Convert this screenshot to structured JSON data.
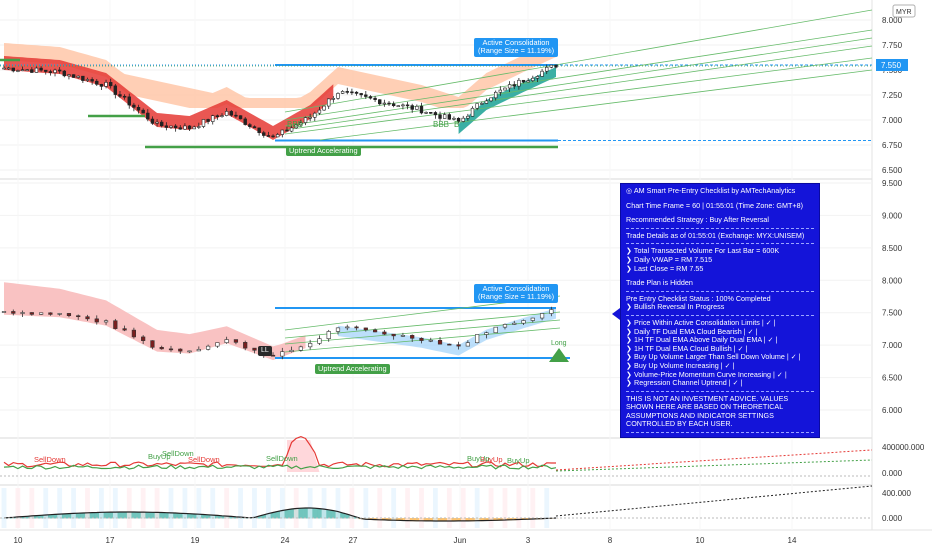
{
  "chart_data": [
    {
      "type": "candlestick",
      "panel": "price",
      "currency": "MYR",
      "y_ticks": [
        "8.000",
        "7.750",
        "7.500",
        "7.250",
        "7.000",
        "6.750",
        "6.500"
      ],
      "ylim": [
        6.43,
        8.1
      ],
      "last_price_label": "7.550",
      "x_tick_labels": [
        "10",
        "17",
        "19",
        "24",
        "27",
        "Jun",
        "3",
        "8",
        "10",
        "14"
      ],
      "range_box": {
        "top": 7.55,
        "bottom": 6.795
      },
      "annotations": {
        "consolidation": "Active Consolidation\n(Range Size = 11.19%)",
        "trend": "Uptrend Accelerating",
        "signal_b": "B",
        "signal_bbb": "BBB"
      }
    },
    {
      "type": "candlestick",
      "panel": "daily",
      "y_ticks": [
        "9.500",
        "9.000",
        "8.500",
        "8.000",
        "7.500",
        "7.000",
        "6.500",
        "6.000"
      ],
      "ylim": [
        5.85,
        9.5
      ],
      "annotations": {
        "consolidation": "Active Consolidation\n(Range Size = 11.19%)",
        "trend": "Uptrend Accelerating",
        "long": "Long",
        "ll_tag": "LL"
      }
    },
    {
      "type": "area",
      "panel": "volume",
      "y_ticks": [
        "400000.000",
        "0.000"
      ],
      "labels": [
        "SellDown",
        "BuyUp",
        "SellDown",
        "SellDown",
        "BuyUp",
        "BuyUp",
        "SellDown",
        "BuyUp"
      ]
    },
    {
      "type": "area",
      "panel": "momentum",
      "y_ticks": [
        "400.000",
        "0.000"
      ]
    }
  ],
  "info_panel": {
    "title": "AM Smart Pre-Entry Checklist by AMTechAnalytics",
    "timeframe": "Chart Time Frame = 60 | 01:55:01 (Time Zone: GMT+8)",
    "strategy": "Recommended Strategy : Buy After Reversal",
    "trade_details": "Trade Details as of 01:55:01 (Exchange: MYX:UNISEM)",
    "volume": "Total Transacted Volume For Last Bar = 600K",
    "vwap": "Daily VWAP = RM 7.515",
    "last_close": "Last Close = RM 7.55",
    "trade_plan": "Trade Plan is Hidden",
    "status": "Pre Entry Checklist Status : 100% Completed",
    "reversal": "Bullish Reversal In Progress",
    "checks": [
      "Price Within Active Consolidation Limits | ✓ |",
      "Daily TF Dual EMA Cloud Bearish | ✓ |",
      "1H TF Dual EMA Above Daily Dual EMA | ✓ |",
      "1H TF Dual EMA Cloud Bullish | ✓ |",
      "Buy Up Volume Larger Than Sell Down Volume | ✓ |",
      "Buy Up Volume Increasing | ✓ |",
      "Volume-Price Momentum Curve Increasing | ✓ |",
      "Regression Channel Uptrend | ✓ |"
    ],
    "disclaimer": "THIS IS NOT AN INVESTMENT ADVICE. VALUES SHOWN HERE ARE BASED ON THEORETICAL ASSUMPTIONS AND INDICATOR SETTINGS CONTROLLED BY EACH USER."
  },
  "colors": {
    "up": "#26a69a",
    "down": "#ef5350",
    "panel_bg": "#1414d9",
    "accent_blue": "#2196f3",
    "accent_green": "#43a047",
    "cloud_salmon": "#ffc7a8",
    "cloud_pink": "#f8bbbb"
  },
  "icons": [
    "target-icon",
    "chevron-right-icon",
    "check-icon"
  ]
}
